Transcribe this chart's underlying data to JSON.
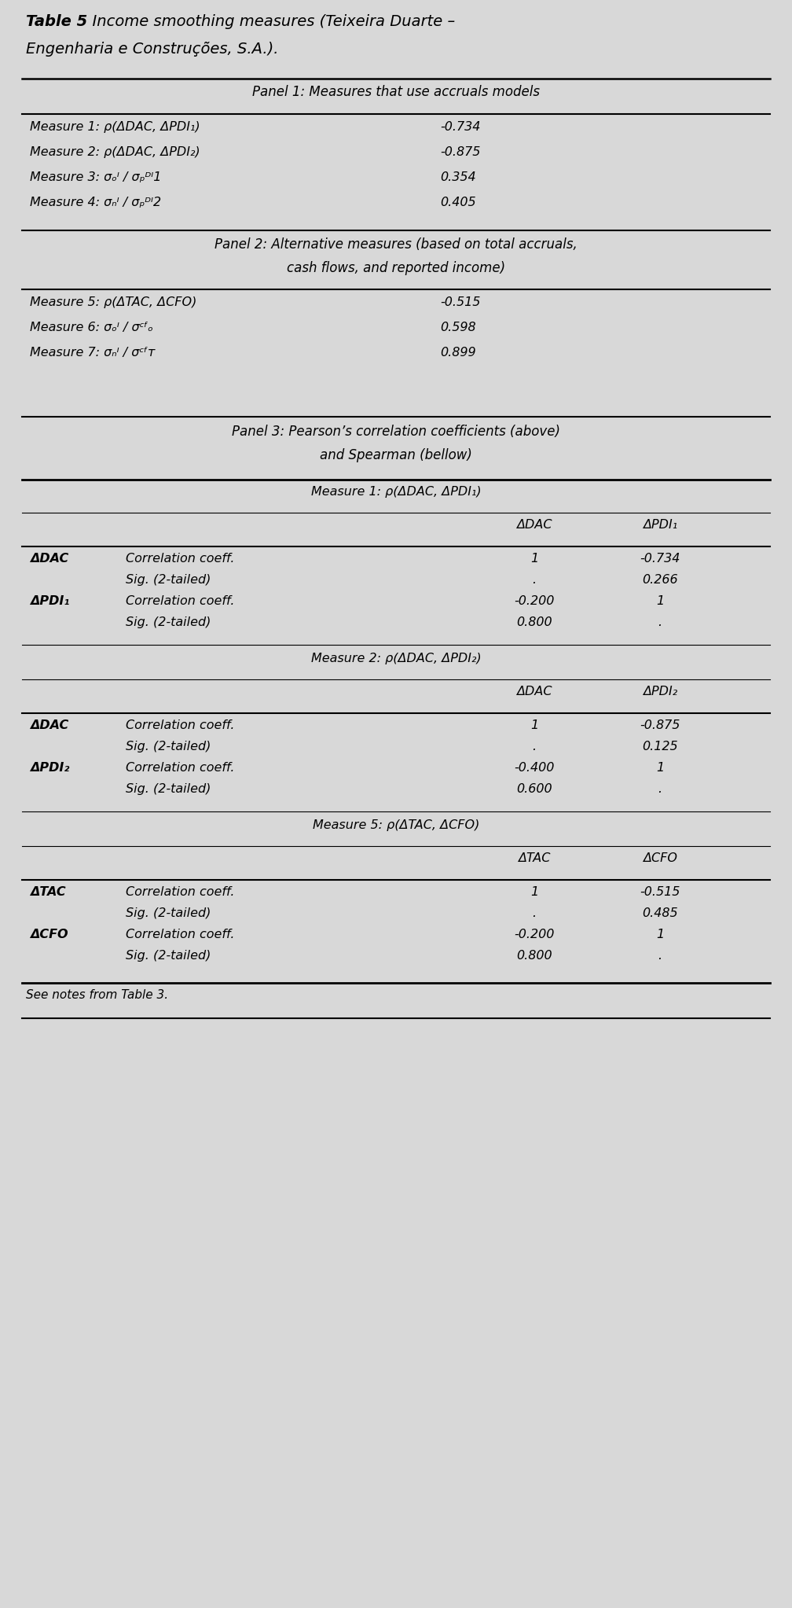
{
  "bg_color": "#d8d8d8",
  "text_color": "#000000",
  "title_bold": "Table 5",
  "title_rest": "  Income smoothing measures (Teixeira Duarte –",
  "title_rest2": "Engenharia e Construções, S.A.).",
  "panel1_header": "Panel 1: Measures that use accruals models",
  "panel1_rows": [
    [
      "Measure 1: ρ(ΔDAC, ΔPDI₁)",
      "-0.734"
    ],
    [
      "Measure 2: ρ(ΔDAC, ΔPDI₂)",
      "-0.875"
    ],
    [
      "Measure 3: σₒᴵ / σₚᴰᴵ1",
      "0.354"
    ],
    [
      "Measure 4: σₙᴵ / σₚᴰᴵ2",
      "0.405"
    ]
  ],
  "panel2_header1": "Panel 2: Alternative measures (based on total accruals,",
  "panel2_header2": "cash flows, and reported income)",
  "panel2_rows": [
    [
      "Measure 5: ρ(ΔTAC, ΔCFO)",
      "-0.515"
    ],
    [
      "Measure 6: σₒᴵ / σᶜᶠₒ",
      "0.598"
    ],
    [
      "Measure 7: σₙᴵ / σᶜᶠᴛ",
      "0.899"
    ]
  ],
  "panel3_header1": "Panel 3: Pearson’s correlation coefficients (above)",
  "panel3_header2": "and Spearman (bellow)",
  "measure1_header": "Measure 1: ρ(ΔDAC, ΔPDI₁)",
  "measure1_col1": "ΔDAC",
  "measure1_col2": "ΔPDI₁",
  "measure1_rows": [
    [
      "ΔDAC",
      "Correlation coeff.",
      "1",
      "-0.734"
    ],
    [
      "",
      "Sig. (2-tailed)",
      ".",
      "0.266"
    ],
    [
      "ΔPDI₁",
      "Correlation coeff.",
      "-0.200",
      "1"
    ],
    [
      "",
      "Sig. (2-tailed)",
      "0.800",
      "."
    ]
  ],
  "measure2_header": "Measure 2: ρ(ΔDAC, ΔPDI₂)",
  "measure2_col1": "ΔDAC",
  "measure2_col2": "ΔPDI₂",
  "measure2_rows": [
    [
      "ΔDAC",
      "Correlation coeff.",
      "1",
      "-0.875"
    ],
    [
      "",
      "Sig. (2-tailed)",
      ".",
      "0.125"
    ],
    [
      "ΔPDI₂",
      "Correlation coeff.",
      "-0.400",
      "1"
    ],
    [
      "",
      "Sig. (2-tailed)",
      "0.600",
      "."
    ]
  ],
  "measure5_header": "Measure 5: ρ(ΔTAC, ΔCFO)",
  "measure5_col1": "ΔTAC",
  "measure5_col2": "ΔCFO",
  "measure5_rows": [
    [
      "ΔTAC",
      "Correlation coeff.",
      "1",
      "-0.515"
    ],
    [
      "",
      "Sig. (2-tailed)",
      ".",
      "0.485"
    ],
    [
      "ΔCFO",
      "Correlation coeff.",
      "-0.200",
      "1"
    ],
    [
      "",
      "Sig. (2-tailed)",
      "0.800",
      "."
    ]
  ],
  "footer": "See notes from Table 3."
}
